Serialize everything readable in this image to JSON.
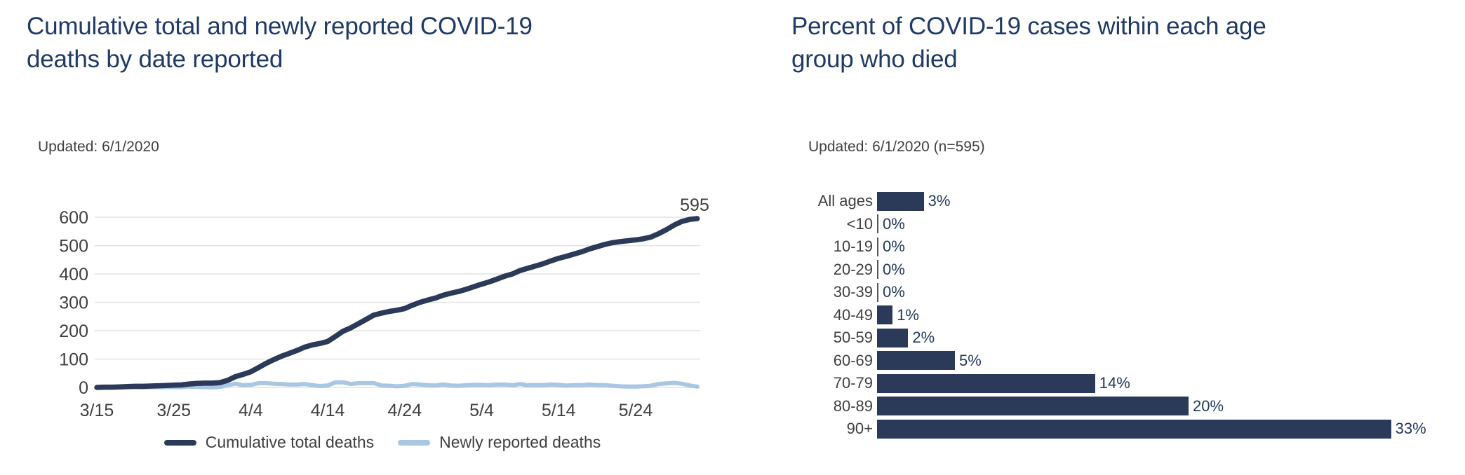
{
  "colors": {
    "navy": "#2b3a58",
    "light_blue": "#a9c7e3",
    "title_navy": "#1f3a66",
    "text_gray": "#3f3f3f",
    "value_navy": "#22395e",
    "gridline": "#e3e3e3",
    "zero_tick": "#505560"
  },
  "left_panel": {
    "title": "Cumulative total and newly reported COVID-19 deaths by date reported",
    "title_lines": [
      "Cumulative total and newly reported COVID-19",
      "deaths by date reported"
    ],
    "updated": "Updated: 6/1/2020"
  },
  "right_panel": {
    "title": "Percent of COVID-19 cases within each age group who died",
    "title_lines": [
      "Percent of COVID-19 cases within each age",
      "group who died"
    ],
    "updated": "Updated: 6/1/2020 (n=595)"
  },
  "chart_data": [
    {
      "type": "line",
      "title": "Cumulative total and newly reported COVID-19 deaths by date reported",
      "xlabel": "",
      "ylabel": "",
      "ylim": [
        0,
        600
      ],
      "y_ticks": [
        0,
        100,
        200,
        300,
        400,
        500,
        600
      ],
      "grid": "horizontal",
      "legend_position": "bottom",
      "annotation": {
        "label": "595",
        "x": "6/1",
        "y": 595
      },
      "x": [
        "3/15",
        "3/16",
        "3/17",
        "3/18",
        "3/19",
        "3/20",
        "3/21",
        "3/22",
        "3/23",
        "3/24",
        "3/25",
        "3/26",
        "3/27",
        "3/28",
        "3/29",
        "3/30",
        "3/31",
        "4/1",
        "4/2",
        "4/3",
        "4/4",
        "4/5",
        "4/6",
        "4/7",
        "4/8",
        "4/9",
        "4/10",
        "4/11",
        "4/12",
        "4/13",
        "4/14",
        "4/15",
        "4/16",
        "4/17",
        "4/18",
        "4/19",
        "4/20",
        "4/21",
        "4/22",
        "4/23",
        "4/24",
        "4/25",
        "4/26",
        "4/27",
        "4/28",
        "4/29",
        "4/30",
        "5/1",
        "5/2",
        "5/3",
        "5/4",
        "5/5",
        "5/6",
        "5/7",
        "5/8",
        "5/9",
        "5/10",
        "5/11",
        "5/12",
        "5/13",
        "5/14",
        "5/15",
        "5/16",
        "5/17",
        "5/18",
        "5/19",
        "5/20",
        "5/21",
        "5/22",
        "5/23",
        "5/24",
        "5/25",
        "5/26",
        "5/27",
        "5/28",
        "5/29",
        "5/30",
        "5/31",
        "6/1"
      ],
      "x_tick_labels": [
        "3/15",
        "3/25",
        "4/4",
        "4/14",
        "4/24",
        "5/4",
        "5/14",
        "5/24"
      ],
      "series": [
        {
          "name": "Cumulative total deaths",
          "color": "#2b3a58",
          "values": [
            0,
            1,
            1,
            2,
            3,
            4,
            4,
            5,
            6,
            7,
            8,
            9,
            12,
            14,
            15,
            15,
            17,
            25,
            38,
            46,
            55,
            70,
            85,
            98,
            110,
            120,
            130,
            142,
            150,
            155,
            162,
            180,
            198,
            210,
            225,
            240,
            255,
            262,
            268,
            272,
            278,
            290,
            300,
            308,
            315,
            325,
            332,
            338,
            346,
            355,
            364,
            372,
            382,
            392,
            400,
            412,
            420,
            428,
            436,
            446,
            455,
            462,
            470,
            478,
            488,
            496,
            504,
            510,
            514,
            517,
            520,
            524,
            530,
            542,
            556,
            572,
            585,
            592,
            595
          ]
        },
        {
          "name": "Newly reported deaths",
          "color": "#a9c7e3",
          "values": [
            0,
            1,
            0,
            1,
            1,
            1,
            0,
            1,
            1,
            1,
            1,
            1,
            3,
            2,
            1,
            0,
            2,
            8,
            13,
            8,
            9,
            15,
            15,
            13,
            12,
            10,
            10,
            12,
            8,
            5,
            7,
            18,
            18,
            12,
            15,
            15,
            15,
            7,
            6,
            4,
            6,
            12,
            10,
            8,
            7,
            10,
            7,
            6,
            8,
            9,
            9,
            8,
            10,
            10,
            8,
            12,
            8,
            8,
            8,
            10,
            9,
            7,
            8,
            8,
            10,
            8,
            8,
            6,
            4,
            3,
            3,
            4,
            6,
            12,
            14,
            16,
            13,
            7,
            3
          ]
        }
      ]
    },
    {
      "type": "bar",
      "orientation": "horizontal",
      "title": "Percent of COVID-19 cases within each age group who died",
      "xlabel": "",
      "ylabel": "",
      "unit": "%",
      "xlim": [
        0,
        33
      ],
      "categories": [
        "All ages",
        "<10",
        "10-19",
        "20-29",
        "30-39",
        "40-49",
        "50-59",
        "60-69",
        "70-79",
        "80-89",
        "90+"
      ],
      "values": [
        3,
        0,
        0,
        0,
        0,
        1,
        2,
        5,
        14,
        20,
        33
      ],
      "value_labels": [
        "3%",
        "0%",
        "0%",
        "0%",
        "0%",
        "1%",
        "2%",
        "5%",
        "14%",
        "20%",
        "33%"
      ]
    }
  ]
}
